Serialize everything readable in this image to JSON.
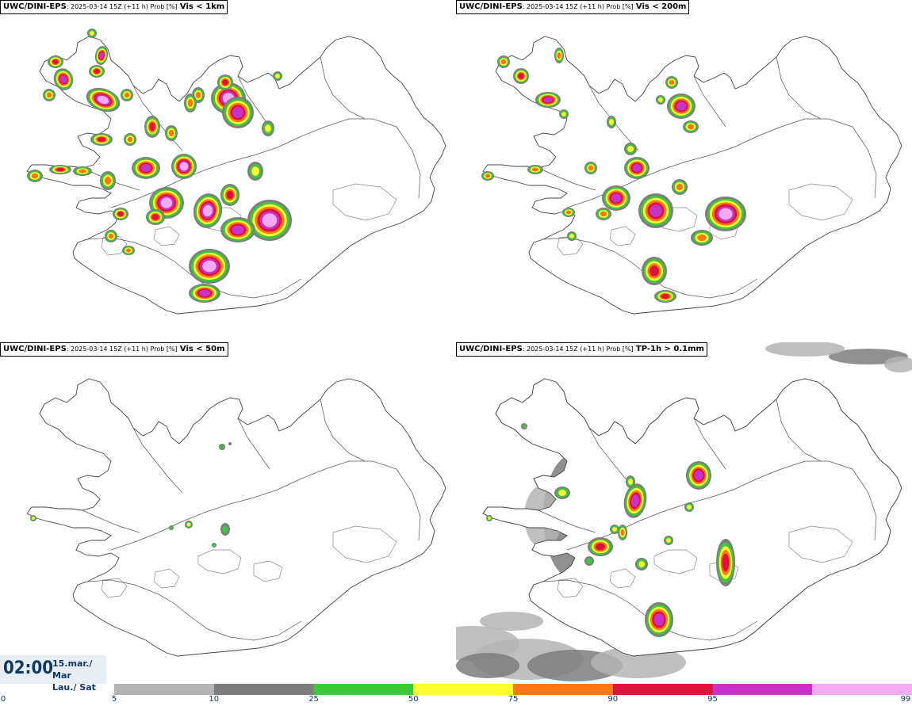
{
  "panels": [
    {
      "source": "UWC/DINI-EPS",
      "meta": ": 2025-03-14 15Z (+11 h) Prob [%]",
      "variable": "Vis < 1km"
    },
    {
      "source": "UWC/DINI-EPS",
      "meta": ": 2025-03-14 15Z (+11 h) Prob [%]",
      "variable": "Vis < 200m"
    },
    {
      "source": "UWC/DINI-EPS",
      "meta": ": 2025-03-14 15Z (+11 h) Prob [%]",
      "variable": "Vis < 50m"
    },
    {
      "source": "UWC/DINI-EPS",
      "meta": ": 2025-03-14 15Z (+11 h) Prob [%]",
      "variable": "TP-1h > 0.1mm"
    }
  ],
  "clock": {
    "time": "02:00",
    "date_line1": "15.mar./ Mar",
    "date_line2": "Lau./ Sat"
  },
  "legend": {
    "ticks": [
      "0",
      "5",
      "10",
      "25",
      "50",
      "75",
      "90",
      "95",
      "99"
    ],
    "colors": [
      "#ffffff",
      "#b4b4b4",
      "#7d7d7d",
      "#3cc83c",
      "#ffff32",
      "#ff7814",
      "#dc143c",
      "#c832c8",
      "#f5aaf5"
    ]
  },
  "map_colors": {
    "outline": "#444444",
    "grey_light": "#b4b4b4",
    "grey_dark": "#7d7d7d",
    "green": "#3cc83c",
    "yellow": "#ffff32",
    "orange": "#ff7814",
    "red": "#dc143c",
    "magenta": "#c832c8",
    "pink": "#f5aaf5"
  }
}
